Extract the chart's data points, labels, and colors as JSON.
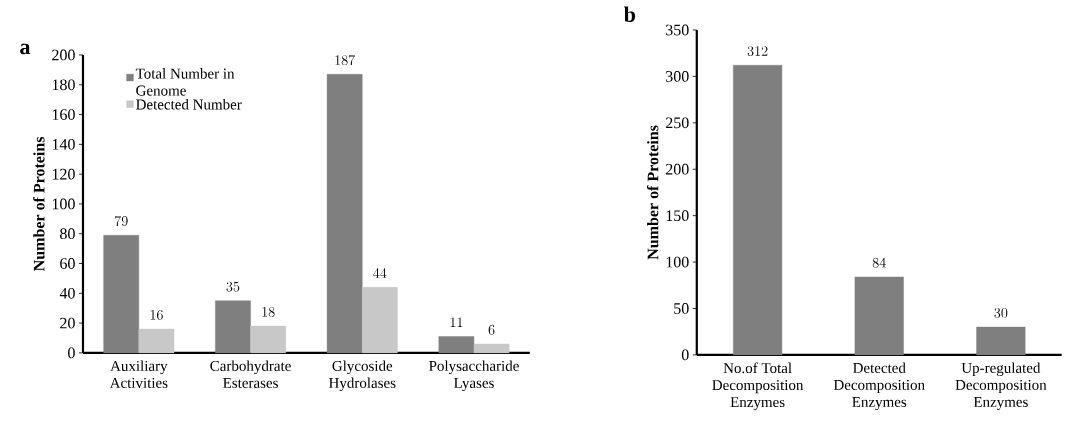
{
  "chart_data": [
    {
      "type": "bar",
      "title": "a",
      "ylabel": "Number of Proteins",
      "categories": [
        "Auxiliary Activities",
        "Carbohydrate Esterases",
        "Glycoside Hydrolases",
        "Polysaccharide Lyases"
      ],
      "series": [
        {
          "name": "Total Number in Genome",
          "color": "#7f7f7f",
          "values": [
            79,
            35,
            187,
            11
          ]
        },
        {
          "name": "Detected Number",
          "color": "#c8c8c8",
          "values": [
            16,
            18,
            44,
            6
          ]
        }
      ],
      "ylim": [
        0,
        200
      ],
      "yticks": [
        0,
        20,
        40,
        60,
        80,
        100,
        120,
        140,
        160,
        180,
        200
      ],
      "legend": "top left",
      "data_labels": true
    },
    {
      "type": "bar",
      "title": "b",
      "ylabel": "Number of Proteins",
      "categories": [
        "No.of Total Decomposition Enzymes",
        "Detected Decomposition Enzymes",
        "Up-regulated Decomposition Enzymes"
      ],
      "values": [
        312,
        84,
        30
      ],
      "color": "#7f7f7f",
      "ylim": [
        0,
        350
      ],
      "yticks": [
        0,
        50,
        100,
        150,
        200,
        250,
        300,
        350
      ],
      "data_labels": true
    }
  ]
}
